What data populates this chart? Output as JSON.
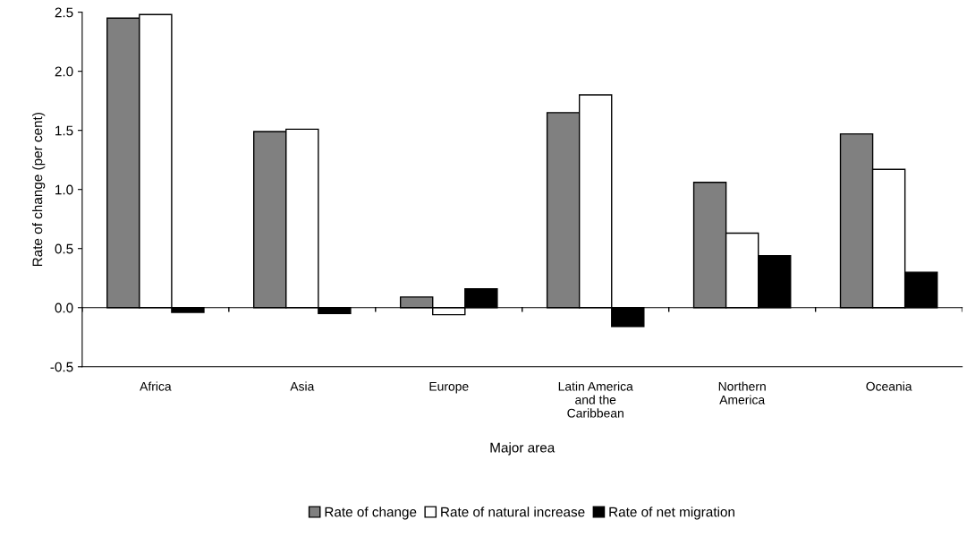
{
  "chart_data": {
    "type": "bar",
    "xlabel": "Major area",
    "ylabel": "Rate of change (per cent)",
    "categories": [
      "Africa",
      "Asia",
      "Europe",
      "Latin America\nand the\nCaribbean",
      "Northern\nAmerica",
      "Oceania"
    ],
    "series": [
      {
        "name": "Rate of change",
        "color": "#808080",
        "values": [
          2.45,
          1.49,
          0.09,
          1.65,
          1.06,
          1.47
        ]
      },
      {
        "name": "Rate of natural increase",
        "color": "#ffffff",
        "values": [
          2.48,
          1.51,
          -0.06,
          1.8,
          0.63,
          1.17
        ]
      },
      {
        "name": "Rate of net migration",
        "color": "#000000",
        "values": [
          -0.04,
          -0.05,
          0.16,
          -0.16,
          0.44,
          0.3
        ]
      }
    ],
    "ylim": [
      -0.5,
      2.5
    ],
    "yticks": [
      {
        "value": -0.5,
        "label": "-0.5"
      },
      {
        "value": 0,
        "label": "0.0"
      },
      {
        "value": 0.5,
        "label": "0.5"
      },
      {
        "value": 1,
        "label": "1.0"
      },
      {
        "value": 1.5,
        "label": "1.5"
      },
      {
        "value": 2,
        "label": "2.0"
      },
      {
        "value": 2.5,
        "label": "2.5"
      }
    ],
    "legend": "bottom"
  }
}
